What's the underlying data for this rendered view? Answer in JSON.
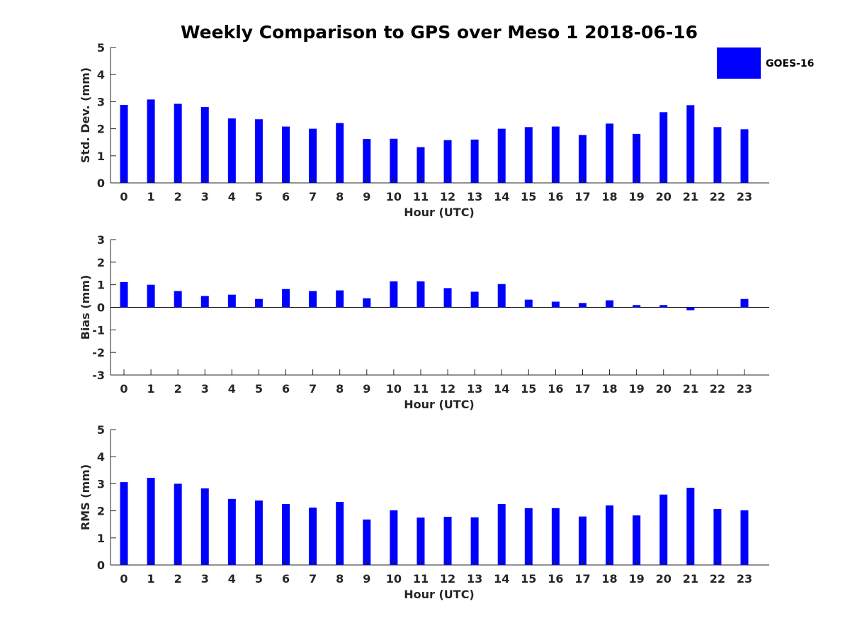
{
  "title": "Weekly Comparison to GPS over Meso 1 2018-06-16",
  "legend": {
    "label": "GOES-16",
    "color": "#0000ff",
    "placement": "top-right"
  },
  "bar_color": "#0000ff",
  "chart_data": [
    {
      "type": "bar",
      "id": "std-dev",
      "title": "Weekly Comparison to GPS over Meso 1 2018-06-16",
      "xlabel": "Hour (UTC)",
      "ylabel": "Std. Dev. (mm)",
      "ylim": [
        0,
        5
      ],
      "yticks": [
        0,
        1,
        2,
        3,
        4,
        5
      ],
      "grid": false,
      "categories": [
        "0",
        "1",
        "2",
        "3",
        "4",
        "5",
        "6",
        "7",
        "8",
        "9",
        "10",
        "11",
        "12",
        "13",
        "14",
        "15",
        "16",
        "17",
        "18",
        "19",
        "20",
        "21",
        "22",
        "23"
      ],
      "series": [
        {
          "name": "GOES-16",
          "values": [
            2.88,
            3.08,
            2.92,
            2.8,
            2.38,
            2.35,
            2.08,
            2.0,
            2.21,
            1.62,
            1.63,
            1.32,
            1.58,
            1.6,
            2.0,
            2.06,
            2.08,
            1.77,
            2.19,
            1.81,
            2.61,
            2.87,
            2.06,
            1.98
          ]
        }
      ]
    },
    {
      "type": "bar",
      "id": "bias",
      "title": "",
      "xlabel": "Hour (UTC)",
      "ylabel": "Bias (mm)",
      "ylim": [
        -3,
        3
      ],
      "yticks": [
        -3,
        -2,
        -1,
        0,
        1,
        2,
        3
      ],
      "grid": false,
      "categories": [
        "0",
        "1",
        "2",
        "3",
        "4",
        "5",
        "6",
        "7",
        "8",
        "9",
        "10",
        "11",
        "12",
        "13",
        "14",
        "15",
        "16",
        "17",
        "18",
        "19",
        "20",
        "21",
        "22",
        "23"
      ],
      "series": [
        {
          "name": "GOES-16",
          "values": [
            1.12,
            1.0,
            0.72,
            0.5,
            0.56,
            0.37,
            0.81,
            0.72,
            0.75,
            0.4,
            1.15,
            1.15,
            0.85,
            0.69,
            1.03,
            0.34,
            0.25,
            0.19,
            0.31,
            0.1,
            0.1,
            -0.13,
            0.0,
            0.37
          ]
        }
      ]
    },
    {
      "type": "bar",
      "id": "rms",
      "title": "",
      "xlabel": "Hour (UTC)",
      "ylabel": "RMS (mm)",
      "ylim": [
        0,
        5
      ],
      "yticks": [
        0,
        1,
        2,
        3,
        4,
        5
      ],
      "grid": false,
      "categories": [
        "0",
        "1",
        "2",
        "3",
        "4",
        "5",
        "6",
        "7",
        "8",
        "9",
        "10",
        "11",
        "12",
        "13",
        "14",
        "15",
        "16",
        "17",
        "18",
        "19",
        "20",
        "21",
        "22",
        "23"
      ],
      "series": [
        {
          "name": "GOES-16",
          "values": [
            3.06,
            3.22,
            3.0,
            2.83,
            2.44,
            2.38,
            2.25,
            2.12,
            2.33,
            1.68,
            2.02,
            1.75,
            1.78,
            1.76,
            2.25,
            2.1,
            2.1,
            1.79,
            2.2,
            1.83,
            2.6,
            2.85,
            2.07,
            2.02
          ]
        }
      ]
    }
  ]
}
